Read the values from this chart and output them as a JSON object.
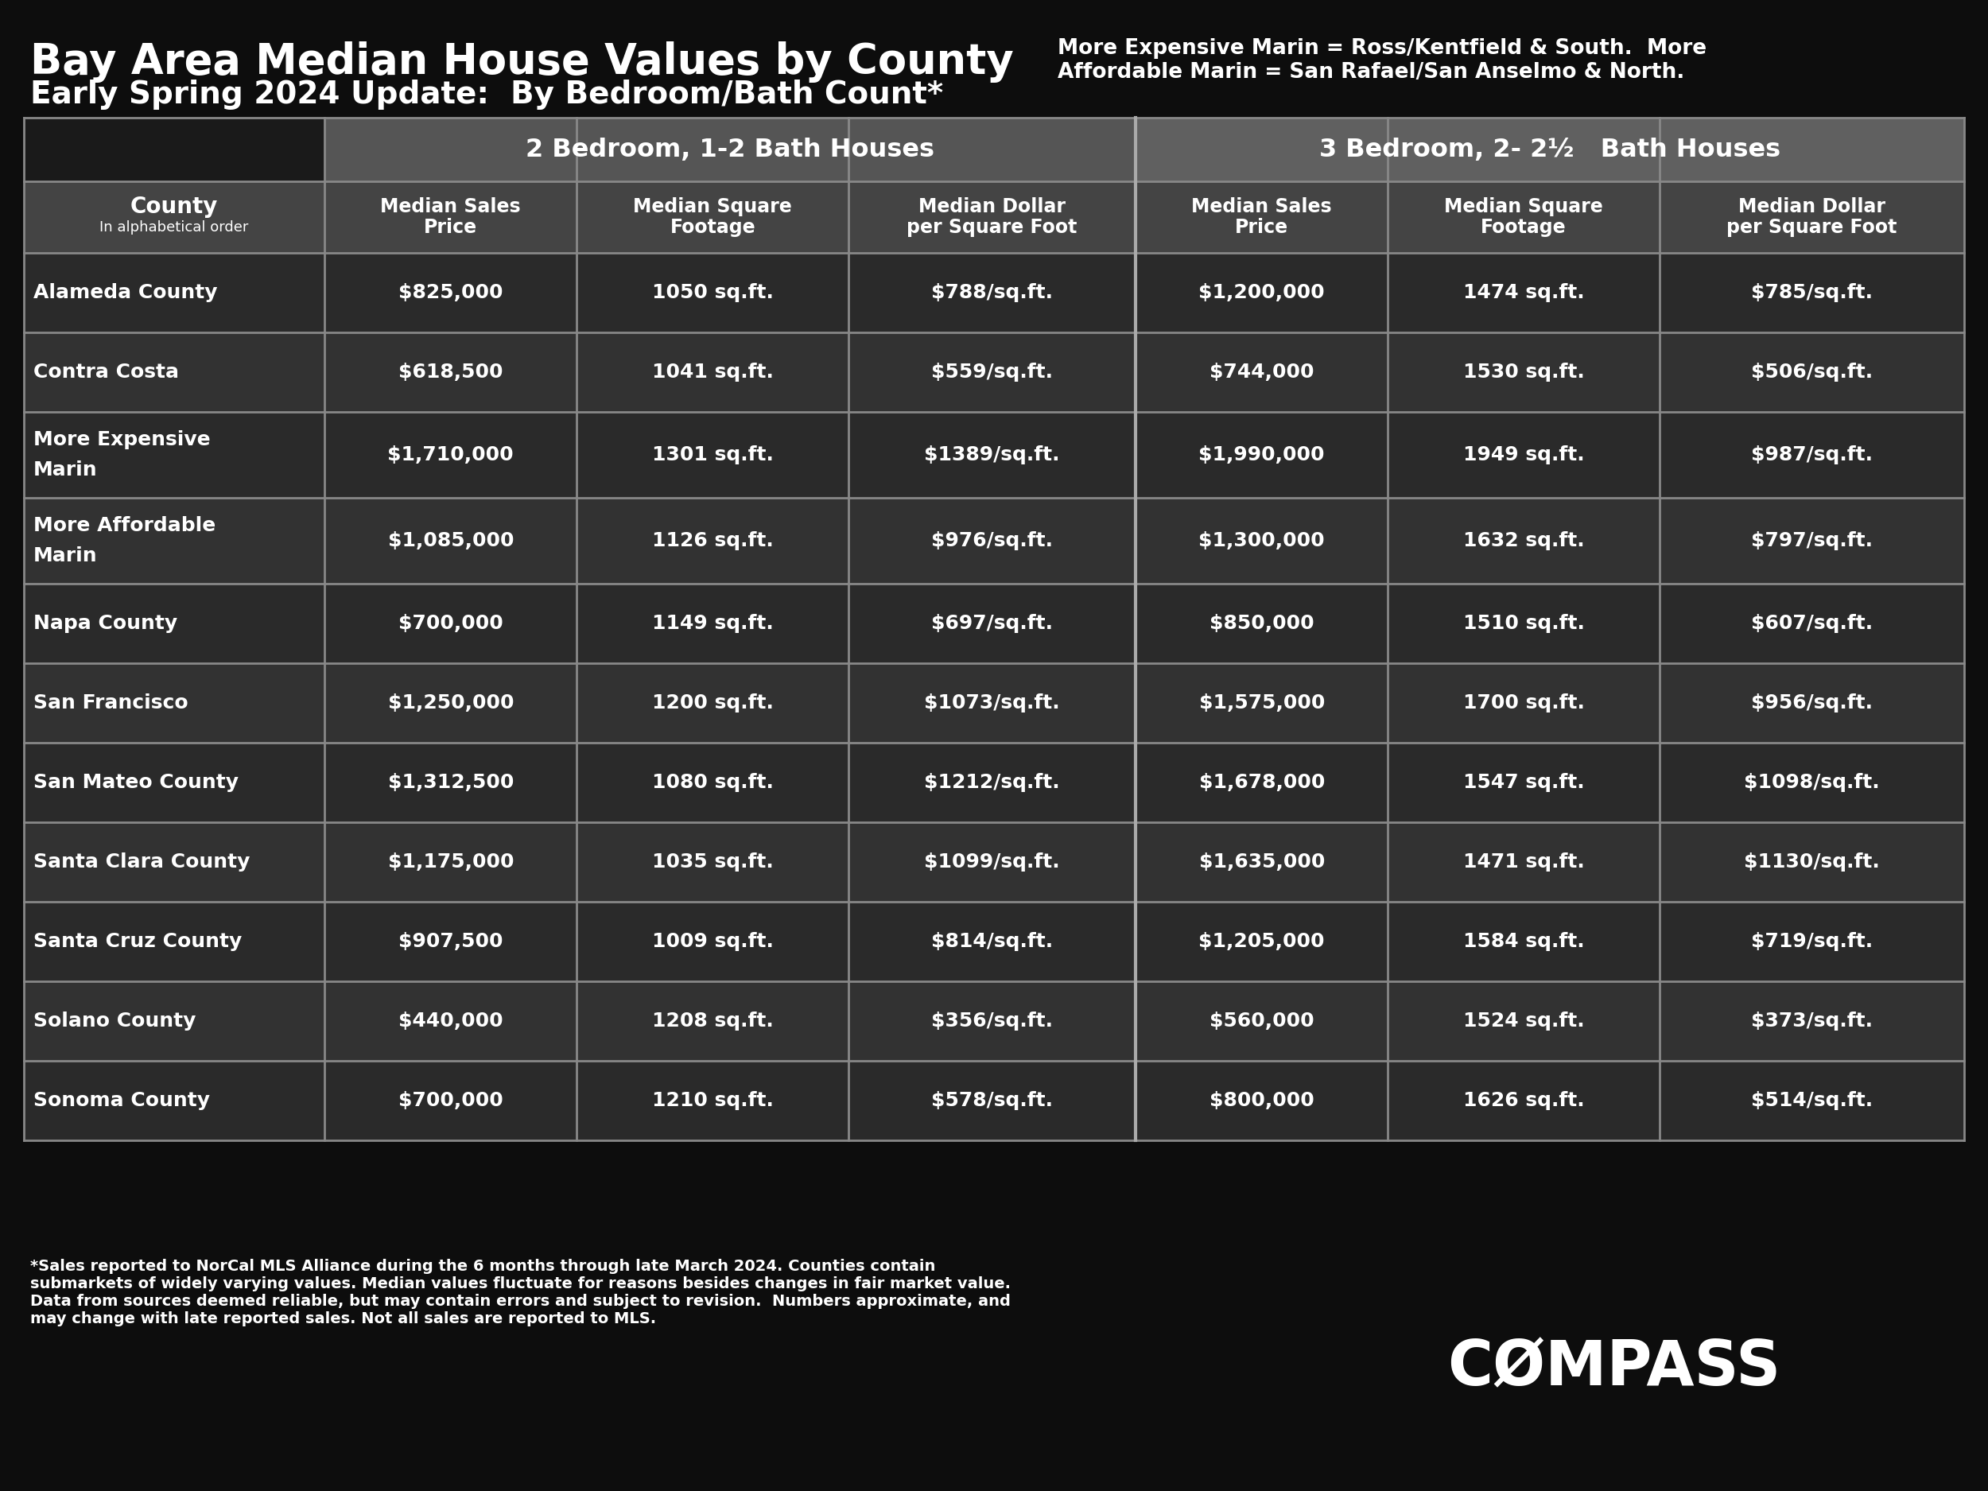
{
  "title_line1": "Bay Area Median House Values by County",
  "title_line2": "Early Spring 2024 Update:  By Bedroom/Bath Count*",
  "subtitle_right": "More Expensive Marin = Ross/Kentfield & South.  More\nAffordable Marin = San Rafael/San Anselmo & North.",
  "col_group1": "2 Bedroom, 1-2 Bath Houses",
  "col_group2": "3 Bedroom, 2- 2½   Bath Houses",
  "rows": [
    [
      "Alameda County",
      "$825,000",
      "1050 sq.ft.",
      "$788/sq.ft.",
      "$1,200,000",
      "1474 sq.ft.",
      "$785/sq.ft."
    ],
    [
      "Contra Costa",
      "$618,500",
      "1041 sq.ft.",
      "$559/sq.ft.",
      "$744,000",
      "1530 sq.ft.",
      "$506/sq.ft."
    ],
    [
      "More Expensive\nMarin",
      "$1,710,000",
      "1301 sq.ft.",
      "$1389/sq.ft.",
      "$1,990,000",
      "1949 sq.ft.",
      "$987/sq.ft."
    ],
    [
      "More Affordable\nMarin",
      "$1,085,000",
      "1126 sq.ft.",
      "$976/sq.ft.",
      "$1,300,000",
      "1632 sq.ft.",
      "$797/sq.ft."
    ],
    [
      "Napa County",
      "$700,000",
      "1149 sq.ft.",
      "$697/sq.ft.",
      "$850,000",
      "1510 sq.ft.",
      "$607/sq.ft."
    ],
    [
      "San Francisco",
      "$1,250,000",
      "1200 sq.ft.",
      "$1073/sq.ft.",
      "$1,575,000",
      "1700 sq.ft.",
      "$956/sq.ft."
    ],
    [
      "San Mateo County",
      "$1,312,500",
      "1080 sq.ft.",
      "$1212/sq.ft.",
      "$1,678,000",
      "1547 sq.ft.",
      "$1098/sq.ft."
    ],
    [
      "Santa Clara County",
      "$1,175,000",
      "1035 sq.ft.",
      "$1099/sq.ft.",
      "$1,635,000",
      "1471 sq.ft.",
      "$1130/sq.ft."
    ],
    [
      "Santa Cruz County",
      "$907,500",
      "1009 sq.ft.",
      "$814/sq.ft.",
      "$1,205,000",
      "1584 sq.ft.",
      "$719/sq.ft."
    ],
    [
      "Solano County",
      "$440,000",
      "1208 sq.ft.",
      "$356/sq.ft.",
      "$560,000",
      "1524 sq.ft.",
      "$373/sq.ft."
    ],
    [
      "Sonoma County",
      "$700,000",
      "1210 sq.ft.",
      "$578/sq.ft.",
      "$800,000",
      "1626 sq.ft.",
      "$514/sq.ft."
    ]
  ],
  "footer_left": "*Sales reported to NorCal MLS Alliance during the 6 months through late March 2024. Counties contain\nsubmarkets of widely varying values. Median values fluctuate for reasons besides changes in fair market value.\nData from sources deemed reliable, but may contain errors and subject to revision.  Numbers approximate, and\nmay change with late reported sales. Not all sales are reported to MLS.",
  "compass_text": "CØMPASS",
  "bg_color": "#0d0d0d",
  "header_group1_bg": "#555555",
  "header_group2_bg": "#606060",
  "header_row_bg": "#444444",
  "row_bg_dark": "#2e2e2e",
  "row_bg_medium": "#383838",
  "border_color": "#888888",
  "text_white": "#ffffff"
}
